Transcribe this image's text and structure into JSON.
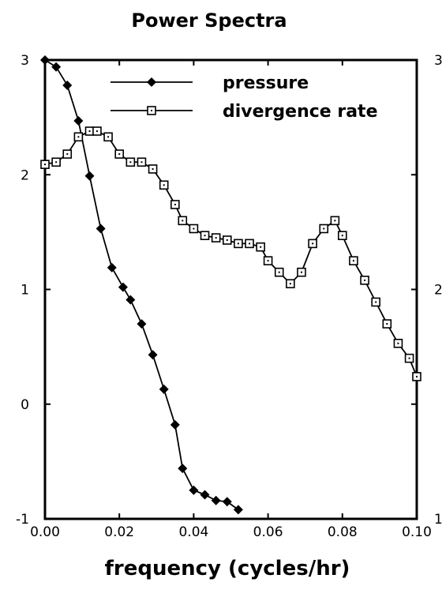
{
  "chart_data": {
    "type": "line",
    "title": "Power Spectra",
    "xlabel": "frequency (cycles/hr)",
    "ylabel": "",
    "xlim": [
      0,
      0.1
    ],
    "ylim_left": [
      -1,
      3
    ],
    "ylim_right": [
      1,
      3
    ],
    "x_ticks": [
      "0.00",
      "0.02",
      "0.04",
      "0.06",
      "0.08",
      "0.10"
    ],
    "y_ticks_left": [
      "3",
      "2",
      "1",
      "0",
      "-1"
    ],
    "y_ticks_right": [
      "3",
      "2",
      "1"
    ],
    "grid": false,
    "legend_position": "top-center",
    "series": [
      {
        "name": "pressure",
        "marker": "filled-diamond",
        "axis": "left",
        "color": "#000000",
        "x": [
          0.0,
          0.003,
          0.006,
          0.009,
          0.012,
          0.015,
          0.018,
          0.021,
          0.023,
          0.026,
          0.029,
          0.032,
          0.035,
          0.037,
          0.04,
          0.043,
          0.046,
          0.049,
          0.052
        ],
        "y": [
          3.0,
          2.94,
          2.78,
          2.47,
          1.99,
          1.53,
          1.19,
          1.02,
          0.91,
          0.7,
          0.43,
          0.13,
          -0.18,
          -0.56,
          -0.75,
          -0.79,
          -0.84,
          -0.85,
          -0.92
        ]
      },
      {
        "name": "divergence rate",
        "marker": "open-square",
        "axis": "left",
        "color": "#000000",
        "x": [
          0.0,
          0.003,
          0.006,
          0.009,
          0.012,
          0.014,
          0.017,
          0.02,
          0.023,
          0.026,
          0.029,
          0.032,
          0.035,
          0.037,
          0.04,
          0.043,
          0.046,
          0.049,
          0.052,
          0.055,
          0.058,
          0.06,
          0.063,
          0.066,
          0.069,
          0.072,
          0.075,
          0.078,
          0.08,
          0.083,
          0.086,
          0.089,
          0.092,
          0.095,
          0.098,
          0.1
        ],
        "y": [
          2.09,
          2.11,
          2.18,
          2.33,
          2.38,
          2.38,
          2.33,
          2.18,
          2.11,
          2.11,
          2.05,
          1.91,
          1.74,
          1.6,
          1.53,
          1.47,
          1.45,
          1.43,
          1.4,
          1.4,
          1.37,
          1.25,
          1.15,
          1.05,
          1.15,
          1.4,
          1.53,
          1.6,
          1.47,
          1.25,
          1.08,
          0.89,
          0.7,
          0.53,
          0.4,
          0.24
        ]
      }
    ]
  }
}
